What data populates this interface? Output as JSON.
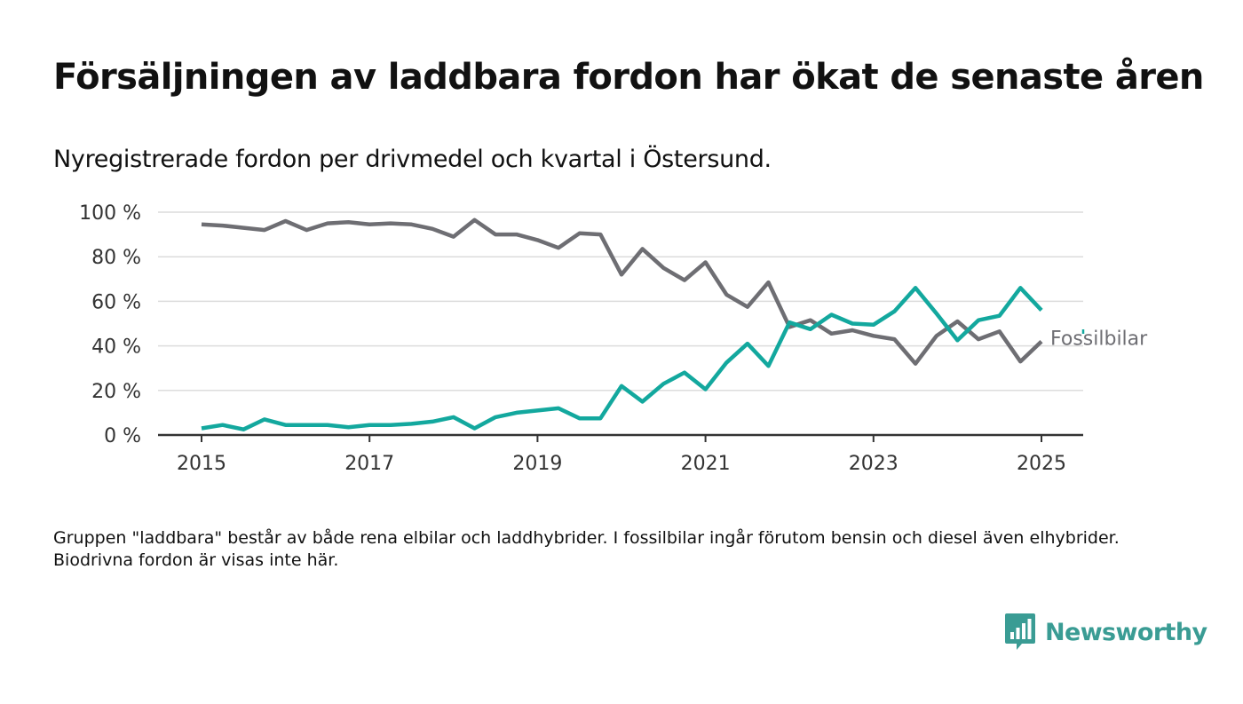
{
  "title": "Försäljningen av laddbara fordon har ökat de senaste åren",
  "subtitle": "Nyregistrerade fordon per drivmedel och kvartal i Östersund.",
  "footnote": "Gruppen \"laddbara\" består av både rena elbilar och laddhybrider. I fossilbilar ingår förutom bensin och diesel även elhybrider. Biodrivna fordon är visas inte här.",
  "brand": {
    "name": "Newsworthy",
    "color": "#3a9c94"
  },
  "chart_data": {
    "type": "line",
    "title": "Försäljningen av laddbara fordon har ökat de senaste åren",
    "subtitle": "Nyregistrerade fordon per drivmedel och kvartal i Östersund.",
    "x_ticks": [
      "2015",
      "2017",
      "2019",
      "2021",
      "2023",
      "2025"
    ],
    "y_ticks": [
      "0 %",
      "20 %",
      "40 %",
      "60 %",
      "80 %",
      "100 %"
    ],
    "ylim": [
      0,
      100
    ],
    "xlim": [
      "2014-07",
      "2025-07"
    ],
    "grid": true,
    "quarters": [
      "2015 Q1",
      "2015 Q2",
      "2015 Q3",
      "2015 Q4",
      "2016 Q1",
      "2016 Q2",
      "2016 Q3",
      "2016 Q4",
      "2017 Q1",
      "2017 Q2",
      "2017 Q3",
      "2017 Q4",
      "2018 Q1",
      "2018 Q2",
      "2018 Q3",
      "2018 Q4",
      "2019 Q1",
      "2019 Q2",
      "2019 Q3",
      "2019 Q4",
      "2020 Q1",
      "2020 Q2",
      "2020 Q3",
      "2020 Q4",
      "2021 Q1",
      "2021 Q2",
      "2021 Q3",
      "2021 Q4",
      "2022 Q1",
      "2022 Q2",
      "2022 Q3",
      "2022 Q4",
      "2023 Q1",
      "2023 Q2",
      "2023 Q3",
      "2023 Q4",
      "2024 Q1",
      "2024 Q2",
      "2024 Q3",
      "2024 Q4",
      "2025 Q1"
    ],
    "series": [
      {
        "name": "Fossilbilar",
        "color": "#6e6e73",
        "values": [
          94.5,
          94,
          93,
          92,
          96,
          92,
          95,
          95.5,
          94.5,
          95,
          94.5,
          92.5,
          89,
          96.5,
          90,
          90,
          87.5,
          84,
          90.5,
          90,
          72,
          83.5,
          75,
          69.5,
          77.5,
          63,
          57.5,
          68.5,
          48.5,
          51.5,
          45.5,
          47,
          44.5,
          43,
          32,
          44.5,
          51,
          43,
          46.5,
          33,
          42
        ]
      },
      {
        "name": "",
        "color": "#13a89e",
        "values": [
          3,
          4.5,
          2.5,
          7,
          4.5,
          4.5,
          4.5,
          3.5,
          4.5,
          4.5,
          5,
          6,
          8,
          3,
          8,
          10,
          11,
          12,
          7.5,
          7.5,
          22,
          15,
          23,
          28,
          20.5,
          32.5,
          41,
          31,
          50.5,
          47.5,
          54,
          50,
          49.5,
          55.5,
          66,
          54.5,
          42.5,
          51.5,
          53.5,
          66,
          56
        ]
      }
    ]
  }
}
